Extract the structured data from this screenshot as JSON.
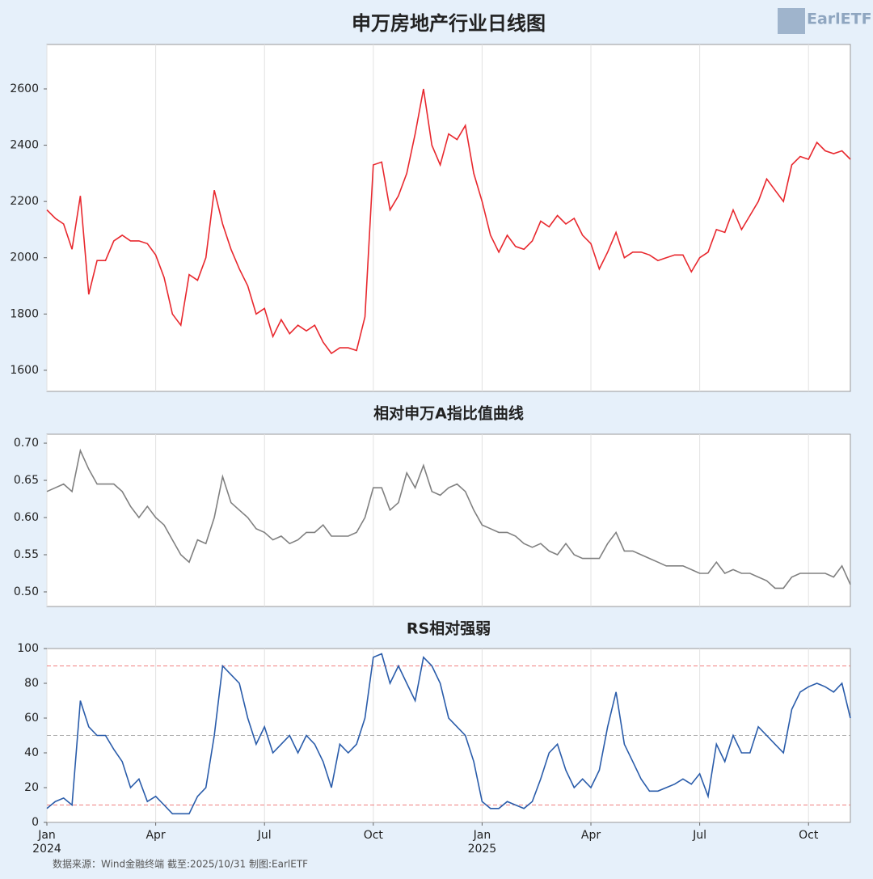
{
  "logo": "EarlETF",
  "source": "数据来源：Wind金融终端 截至:2025/10/31 制图:EarlETF",
  "chart_data": [
    {
      "type": "line",
      "title": "申万房地产行业日线图",
      "ylim": [
        1525,
        2758
      ],
      "yticks": [
        1600,
        1800,
        2000,
        2200,
        2400,
        2600
      ],
      "grid": true,
      "series": [
        {
          "name": "申万房地产",
          "color": "#e8282e",
          "values": [
            2170,
            2140,
            2120,
            2030,
            2220,
            1870,
            1990,
            1990,
            2060,
            2080,
            2060,
            2060,
            2050,
            2010,
            1930,
            1800,
            1760,
            1940,
            1920,
            2000,
            2240,
            2120,
            2030,
            1960,
            1900,
            1800,
            1820,
            1720,
            1780,
            1730,
            1760,
            1740,
            1760,
            1700,
            1660,
            1680,
            1680,
            1670,
            1790,
            2330,
            2340,
            2170,
            2220,
            2300,
            2440,
            2600,
            2400,
            2330,
            2440,
            2420,
            2470,
            2300,
            2200,
            2080,
            2020,
            2080,
            2040,
            2030,
            2060,
            2130,
            2110,
            2150,
            2120,
            2140,
            2080,
            2050,
            1960,
            2020,
            2090,
            2000,
            2020,
            2020,
            2010,
            1990,
            2000,
            2010,
            2010,
            1950,
            2000,
            2020,
            2100,
            2090,
            2170,
            2100,
            2150,
            2200,
            2280,
            2240,
            2200,
            2330,
            2360,
            2350,
            2410,
            2380,
            2370,
            2380,
            2350
          ]
        }
      ]
    },
    {
      "type": "line",
      "title": "相对申万A指比值曲线",
      "ylim": [
        0.4804,
        0.712
      ],
      "yticks": [
        {
          "value": 0.5,
          "label": "0.50"
        },
        {
          "value": 0.55,
          "label": "0.55"
        },
        {
          "value": 0.6,
          "label": "0.60"
        },
        {
          "value": 0.65,
          "label": "0.65"
        },
        {
          "value": 0.7,
          "label": "0.70"
        }
      ],
      "grid": true,
      "series": [
        {
          "name": "比值",
          "color": "#808080",
          "values": [
            0.635,
            0.64,
            0.645,
            0.635,
            0.69,
            0.665,
            0.645,
            0.645,
            0.645,
            0.635,
            0.615,
            0.6,
            0.615,
            0.6,
            0.59,
            0.57,
            0.55,
            0.54,
            0.57,
            0.565,
            0.6,
            0.655,
            0.62,
            0.61,
            0.6,
            0.585,
            0.58,
            0.57,
            0.575,
            0.565,
            0.57,
            0.58,
            0.58,
            0.59,
            0.575,
            0.575,
            0.575,
            0.58,
            0.6,
            0.64,
            0.64,
            0.61,
            0.62,
            0.66,
            0.64,
            0.67,
            0.635,
            0.63,
            0.64,
            0.645,
            0.635,
            0.61,
            0.59,
            0.585,
            0.58,
            0.58,
            0.575,
            0.565,
            0.56,
            0.565,
            0.555,
            0.55,
            0.565,
            0.55,
            0.545,
            0.545,
            0.545,
            0.565,
            0.58,
            0.555,
            0.555,
            0.55,
            0.545,
            0.54,
            0.535,
            0.535,
            0.535,
            0.53,
            0.525,
            0.525,
            0.54,
            0.525,
            0.53,
            0.525,
            0.525,
            0.52,
            0.515,
            0.505,
            0.505,
            0.52,
            0.525,
            0.525,
            0.525,
            0.525,
            0.52,
            0.535,
            0.51
          ]
        }
      ]
    },
    {
      "type": "line",
      "title": "RS相对强弱",
      "ylim": [
        0,
        100
      ],
      "yticks": [
        0,
        20,
        40,
        60,
        80,
        100
      ],
      "grid": true,
      "categories": [
        "Jan 2024",
        null,
        null,
        null,
        null,
        null,
        null,
        null,
        null,
        null,
        null,
        null,
        null,
        "Apr",
        null,
        null,
        null,
        null,
        null,
        null,
        null,
        null,
        null,
        null,
        null,
        null,
        "Jul",
        null,
        null,
        null,
        null,
        null,
        null,
        null,
        null,
        null,
        null,
        null,
        null,
        "Oct",
        null,
        null,
        null,
        null,
        null,
        null,
        null,
        null,
        null,
        null,
        null,
        null,
        "Jan 2025",
        null,
        null,
        null,
        null,
        null,
        null,
        null,
        null,
        null,
        null,
        null,
        null,
        "Apr",
        null,
        null,
        null,
        null,
        null,
        null,
        null,
        null,
        null,
        null,
        null,
        null,
        "Jul",
        null,
        null,
        null,
        null,
        null,
        null,
        null,
        null,
        null,
        null,
        null,
        null,
        "Oct",
        null,
        null,
        null,
        null,
        null
      ],
      "reference_lines": [
        {
          "value": 90,
          "color": "#f08080"
        },
        {
          "value": 50,
          "color": "#b0b0b0"
        },
        {
          "value": 10,
          "color": "#f08080"
        }
      ],
      "series": [
        {
          "name": "RS",
          "color": "#2a5caa",
          "values": [
            8,
            12,
            14,
            10,
            70,
            55,
            50,
            50,
            42,
            35,
            20,
            25,
            12,
            15,
            10,
            5,
            5,
            5,
            15,
            20,
            50,
            90,
            85,
            80,
            60,
            45,
            55,
            40,
            45,
            50,
            40,
            50,
            45,
            35,
            20,
            45,
            40,
            45,
            60,
            95,
            97,
            80,
            90,
            80,
            70,
            95,
            90,
            80,
            60,
            55,
            50,
            35,
            12,
            8,
            8,
            12,
            10,
            8,
            12,
            25,
            40,
            45,
            30,
            20,
            25,
            20,
            30,
            55,
            75,
            45,
            35,
            25,
            18,
            18,
            20,
            22,
            25,
            22,
            28,
            15,
            45,
            35,
            50,
            40,
            40,
            55,
            50,
            45,
            40,
            65,
            75,
            78,
            80,
            78,
            75,
            80,
            60
          ]
        }
      ]
    }
  ]
}
